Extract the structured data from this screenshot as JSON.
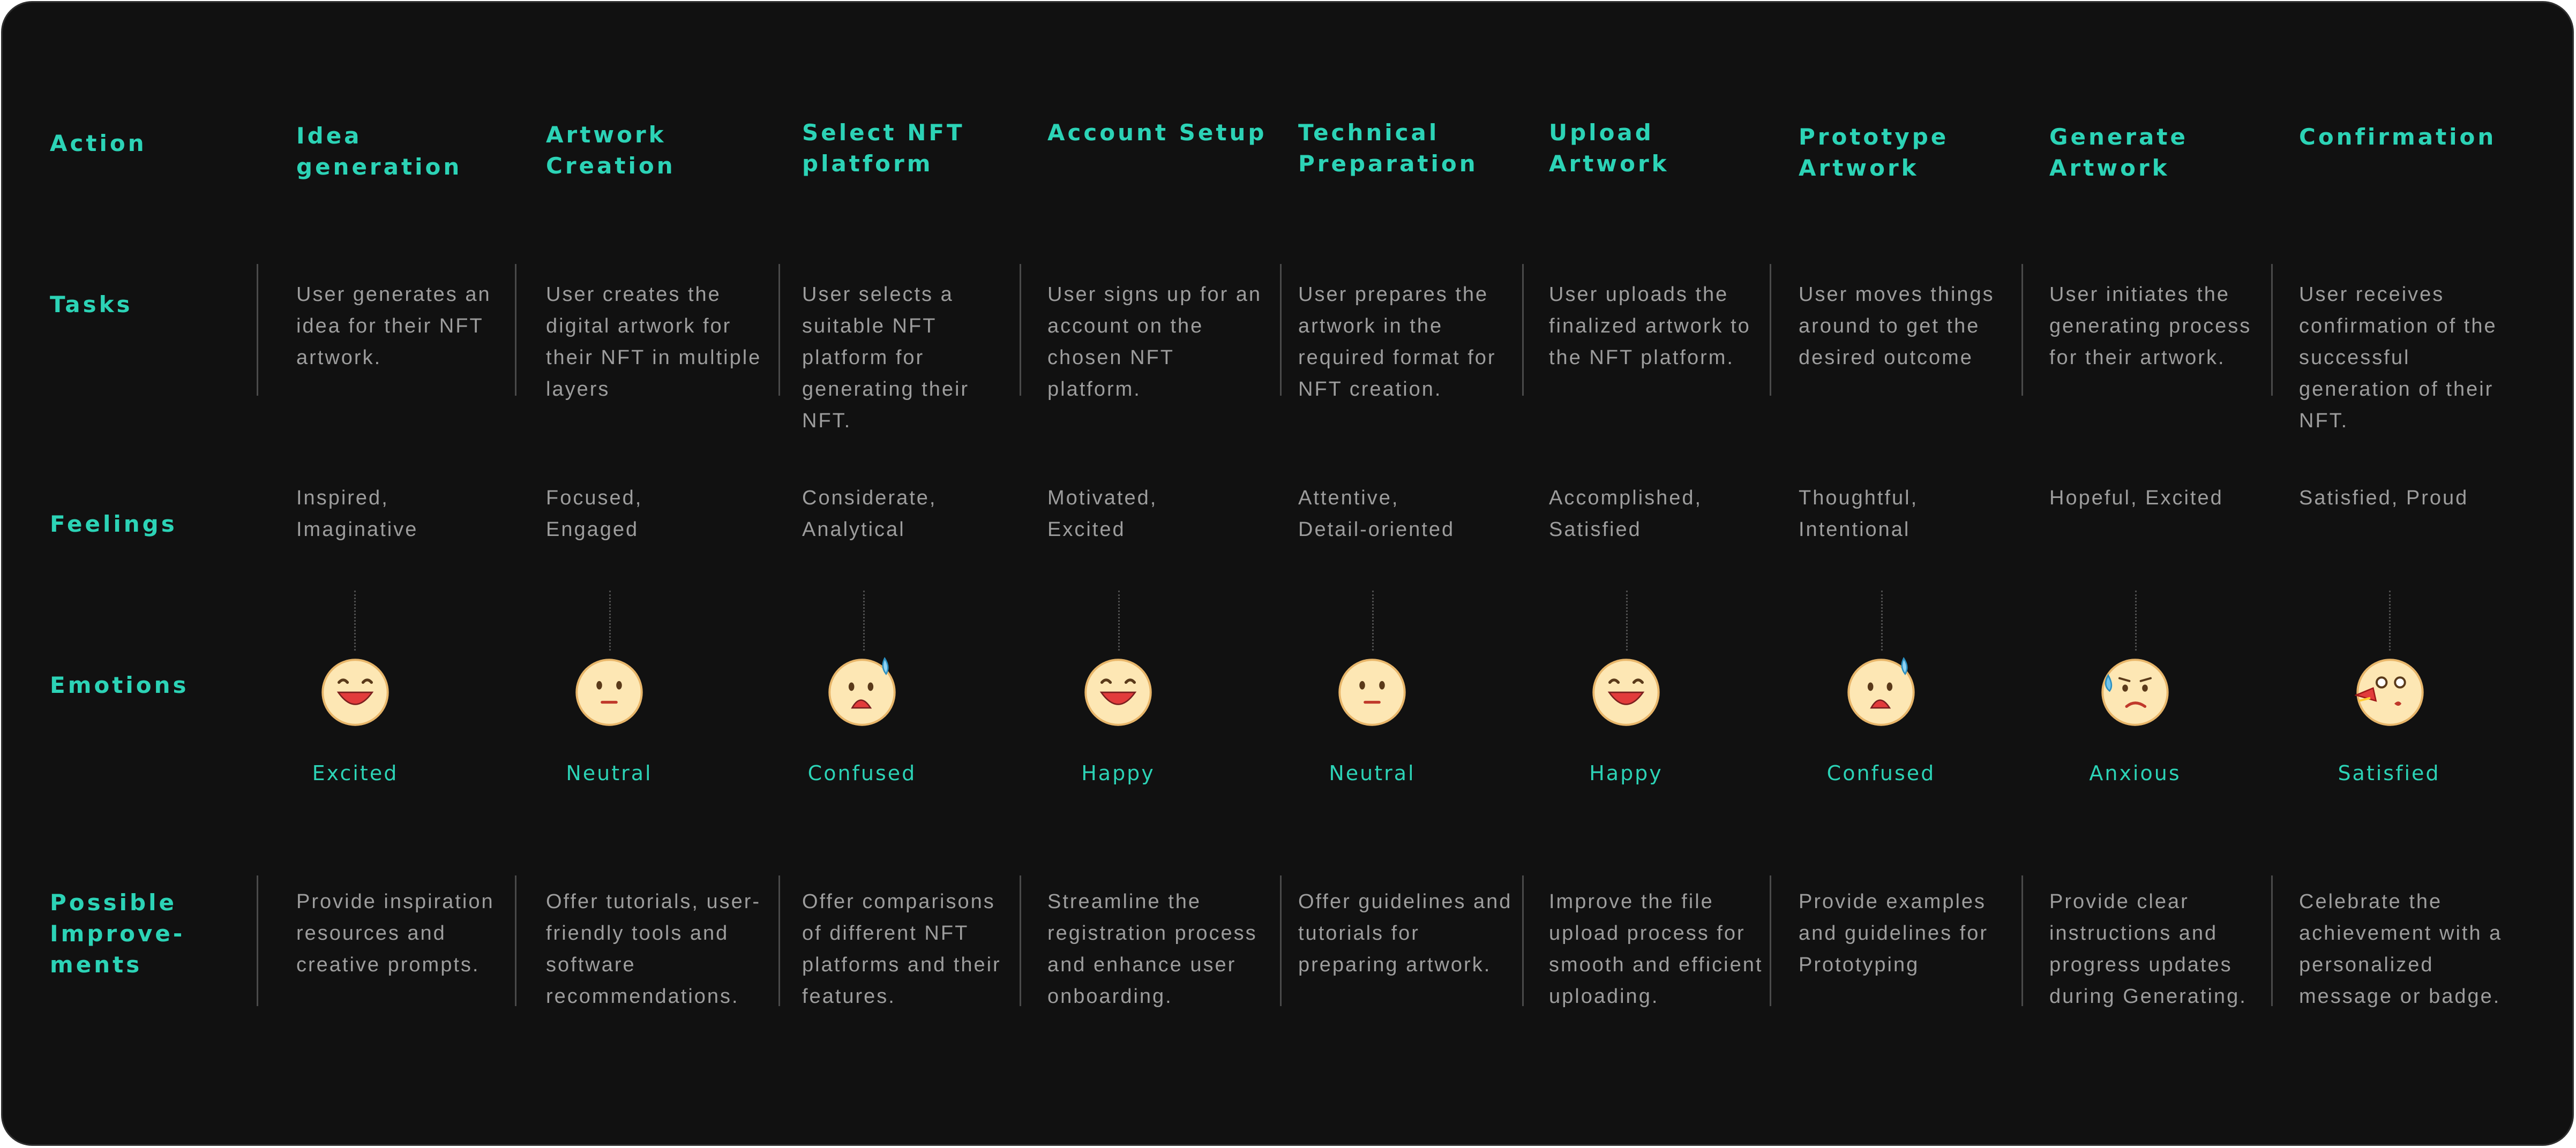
{
  "rows": {
    "action": "Action",
    "tasks": "Tasks",
    "feelings": "Feelings",
    "emotions": "Emotions",
    "improvements": "Possible\nImprove-\nments"
  },
  "stages": [
    {
      "title": "Idea generation",
      "task": "User generates an idea for their NFT artwork.",
      "feelings": "Inspired, Imaginative",
      "emotion": "Excited",
      "emotion_icon": "excited-face-icon",
      "improvement": "Provide inspiration resources and creative prompts."
    },
    {
      "title": "Artwork Creation",
      "task": "User creates the digital artwork for their NFT in multiple layers",
      "feelings": "Focused, Engaged",
      "emotion": "Neutral",
      "emotion_icon": "neutral-face-icon",
      "improvement": "Offer tutorials, user-friendly tools and software recommendations."
    },
    {
      "title": "Select NFT platform",
      "task": "User selects a suitable NFT platform for generating their NFT.",
      "feelings": "Considerate, Analytical",
      "emotion": "Confused",
      "emotion_icon": "confused-face-icon",
      "improvement": "Offer comparisons of different NFT platforms and their features."
    },
    {
      "title": "Account Setup",
      "task": "User signs up for an account on the chosen NFT platform.",
      "feelings": "Motivated, Excited",
      "emotion": "Happy",
      "emotion_icon": "happy-face-icon",
      "improvement": "Streamline the registration process and enhance user onboarding."
    },
    {
      "title": "Technical Preparation",
      "task": "User prepares the artwork in the required format for NFT creation.",
      "feelings": "Attentive, Detail-oriented",
      "emotion": "Neutral",
      "emotion_icon": "neutral-face-icon",
      "improvement": "Offer guidelines and tutorials for preparing artwork."
    },
    {
      "title": "Upload Artwork",
      "task": "User uploads the finalized artwork to the NFT platform.",
      "feelings": "Accomplished, Satisfied",
      "emotion": "Happy",
      "emotion_icon": "happy-face-icon",
      "improvement": "Improve the file upload process for smooth and efficient uploading."
    },
    {
      "title": "Prototype Artwork",
      "task": "User moves things around to get the desired outcome",
      "feelings": "Thoughtful, Intentional",
      "emotion": "Confused",
      "emotion_icon": "confused-face-icon",
      "improvement": "Provide examples and guidelines for Prototyping"
    },
    {
      "title": "Generate Artwork",
      "task": "User initiates the generating process for their artwork.",
      "feelings": "Hopeful, Excited",
      "emotion": "Anxious",
      "emotion_icon": "anxious-face-icon",
      "improvement": "Provide clear instructions and progress updates during Generating."
    },
    {
      "title": "Confirmation",
      "task": "User receives confirmation of the successful generation of their NFT.",
      "feelings": "Satisfied, Proud",
      "emotion": "Satisfied",
      "emotion_icon": "party-face-icon",
      "improvement": "Celebrate the achievement with a personalized message or badge."
    }
  ],
  "colors": {
    "background": "#111111",
    "accent": "#2cd3b6",
    "body_text": "#9d9d9d",
    "face": "#fde7b4",
    "mouth": "#e23b3b"
  }
}
